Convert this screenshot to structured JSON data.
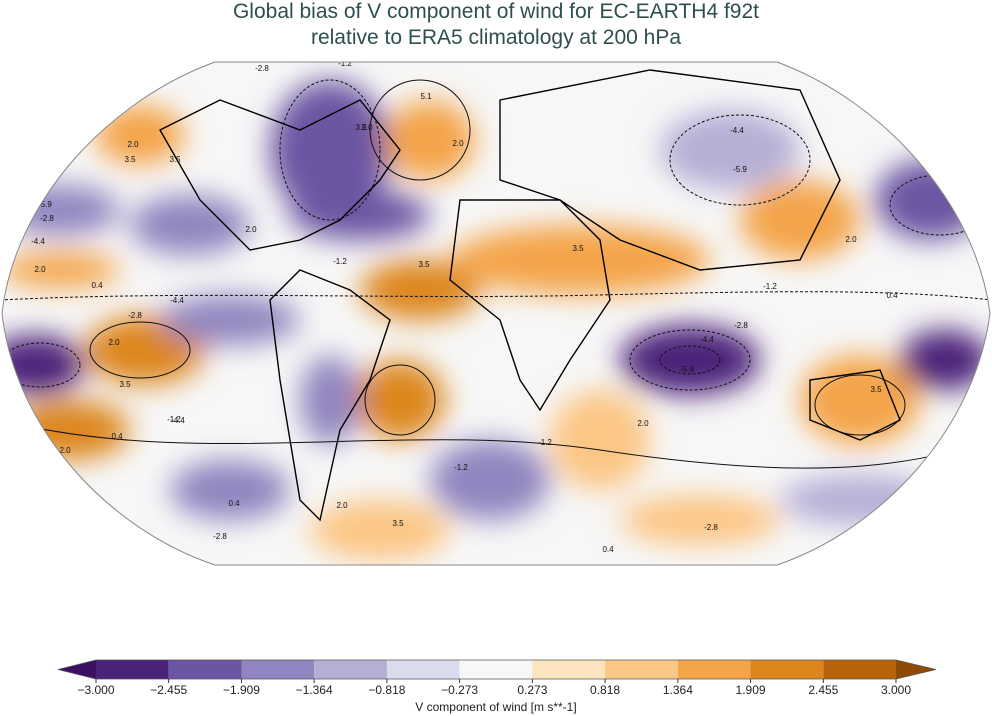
{
  "header": {
    "title": [
      "Global bias of V component of wind for EC-EARTH4 f92t",
      "relative to ERA5 climatology at 200 hPa"
    ]
  },
  "colorbar": {
    "label": "V component of wind [m s**-1]",
    "ticks": [
      {
        "value": -3,
        "label": "−3.000"
      },
      {
        "value": -2.455,
        "label": "−2.455"
      },
      {
        "value": -1.909,
        "label": "−1.909"
      },
      {
        "value": -1.364,
        "label": "−1.364"
      },
      {
        "value": -0.818,
        "label": "−0.818"
      },
      {
        "value": -0.273,
        "label": "−0.273"
      },
      {
        "value": 0.273,
        "label": "0.273"
      },
      {
        "value": 0.818,
        "label": "0.818"
      },
      {
        "value": 1.364,
        "label": "1.364"
      },
      {
        "value": 1.909,
        "label": "1.909"
      },
      {
        "value": 2.455,
        "label": "2.455"
      },
      {
        "value": 3,
        "label": "3.000"
      }
    ],
    "colors": [
      "#4b2279",
      "#6c55a2",
      "#9085bf",
      "#b5afd6",
      "#dadbec",
      "#f7f7f7",
      "#fde3be",
      "#fcc684",
      "#f4a449",
      "#dd861e",
      "#b7630a"
    ],
    "under_color": "#3b0f63",
    "over_color": "#8f4a05"
  },
  "contour_labels": [
    "-2.8",
    "-1.2",
    "2.0",
    "3.5",
    "3.5",
    "2.0",
    "5.1",
    "3.5",
    "2.0",
    "-4.4",
    "-5.9",
    "-5.9",
    "0.4",
    "-2.8",
    "-4.4",
    "2.0",
    "-1.2",
    "0.4",
    "-4.4",
    "2.0",
    "3.5",
    "-2.8",
    "-5.9",
    "-4.4",
    "3.5",
    "2.0",
    "0.4",
    "-1.2",
    "-2.8",
    "2.0",
    "3.5",
    "-1.2",
    "0.4",
    "2.0",
    "2.0",
    "3.5",
    "0.4",
    "-1.2",
    "2.0",
    "-2.8",
    "0.4",
    "-4.4",
    "3.5",
    "-1.2",
    "-2.8"
  ]
}
